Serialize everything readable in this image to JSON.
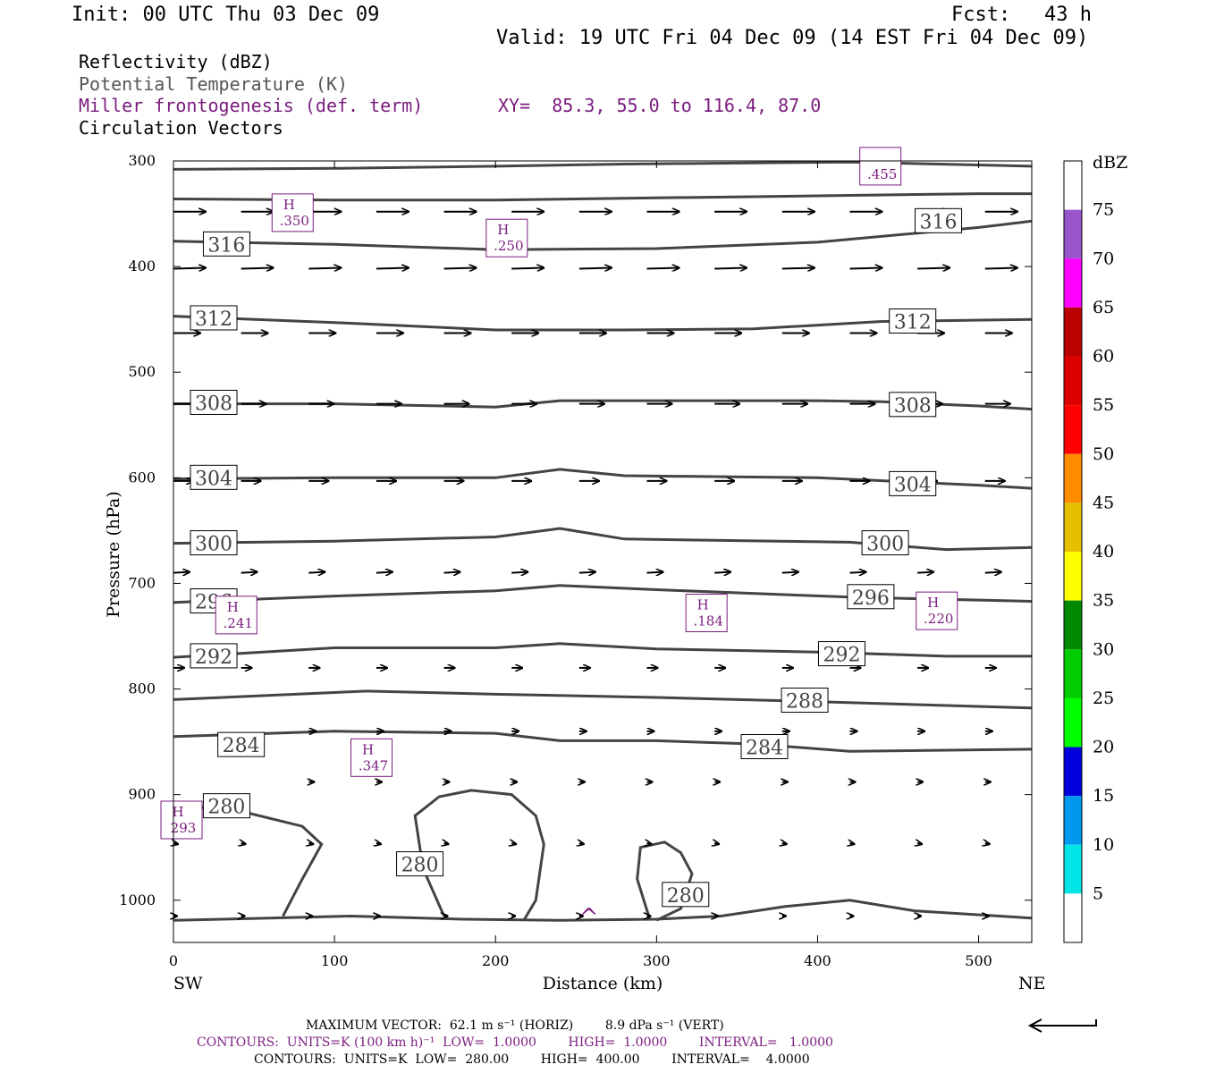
{
  "header": {
    "init": "Init: 00 UTC Thu 03 Dec 09",
    "fcst_label": "Fcst:",
    "fcst_value": "43 h",
    "valid": "Valid: 19 UTC Fri 04 Dec 09 (14 EST Fri 04 Dec 09)"
  },
  "legend": {
    "line1": "Reflectivity (dBZ)",
    "line2": "Potential Temperature (K)",
    "line3": "Miller frontogenesis (def. term)",
    "xy": "XY=  85.3, 55.0 to 116.4, 87.0",
    "line4": "Circulation Vectors"
  },
  "colors": {
    "theta": "#444444",
    "fronto": "#7a1c7e",
    "vector": "#000000",
    "frame": "#000000"
  },
  "chart_data": {
    "type": "contour-cross-section",
    "xlabel": "Distance (km)",
    "ylabel": "Pressure (hPa)",
    "x_ticks": [
      0,
      100,
      200,
      300,
      400,
      500
    ],
    "y_ticks": [
      300,
      400,
      500,
      600,
      700,
      800,
      900,
      1000
    ],
    "xlim": [
      0,
      533
    ],
    "ylim": [
      300,
      1040
    ],
    "x_end_labels": {
      "left": "SW",
      "right": "NE"
    },
    "colorbar": {
      "title": "dBZ",
      "levels": [
        5,
        10,
        15,
        20,
        25,
        30,
        35,
        40,
        45,
        50,
        55,
        60,
        65,
        70,
        75
      ],
      "colors": [
        "#ffffff",
        "#00e5e5",
        "#0099ee",
        "#0000dd",
        "#00ff00",
        "#00cc00",
        "#008800",
        "#ffff00",
        "#e5bf00",
        "#ff8c00",
        "#ff0000",
        "#dd0000",
        "#bb0000",
        "#ff00ff",
        "#9955cc",
        "#ffffff"
      ]
    },
    "theta_label_items": [
      {
        "v": 316,
        "x": 33,
        "p": 379
      },
      {
        "v": 316,
        "x": 475,
        "p": 357
      },
      {
        "v": 312,
        "x": 25,
        "p": 449
      },
      {
        "v": 312,
        "x": 459,
        "p": 452
      },
      {
        "v": 308,
        "x": 25,
        "p": 529
      },
      {
        "v": 308,
        "x": 459,
        "p": 531
      },
      {
        "v": 304,
        "x": 25,
        "p": 600
      },
      {
        "v": 304,
        "x": 459,
        "p": 606
      },
      {
        "v": 300,
        "x": 25,
        "p": 662
      },
      {
        "v": 300,
        "x": 442,
        "p": 662
      },
      {
        "v": 296,
        "x": 25,
        "p": 717
      },
      {
        "v": 296,
        "x": 433,
        "p": 713
      },
      {
        "v": 292,
        "x": 25,
        "p": 769
      },
      {
        "v": 292,
        "x": 415,
        "p": 767
      },
      {
        "v": 288,
        "x": 392,
        "p": 811
      },
      {
        "v": 284,
        "x": 42,
        "p": 853
      },
      {
        "v": 284,
        "x": 367,
        "p": 855
      },
      {
        "v": 280,
        "x": 33,
        "p": 911
      },
      {
        "v": 280,
        "x": 153,
        "p": 966
      },
      {
        "v": 280,
        "x": 318,
        "p": 995
      }
    ],
    "fronto_max_items": [
      {
        "m": "H",
        "v": ".350",
        "x": 74,
        "p": 349
      },
      {
        "m": "H",
        "v": ".250",
        "x": 207,
        "p": 373
      },
      {
        "m": "",
        "v": ".455",
        "x": 439,
        "p": 305
      },
      {
        "m": "H",
        "v": ".241",
        "x": 39,
        "p": 730
      },
      {
        "m": "H",
        "v": ".184",
        "x": 331,
        "p": 728
      },
      {
        "m": "H",
        "v": ".220",
        "x": 474,
        "p": 726
      },
      {
        "m": "H",
        "v": ".347",
        "x": 123,
        "p": 865
      },
      {
        "m": "H",
        "v": "293",
        "x": 5,
        "p": 924
      }
    ],
    "low_marker": {
      "text": "^",
      "x": 258,
      "p": 1010
    }
  },
  "footer": {
    "line1": "MAXIMUM VECTOR:  62.1 m s⁻¹ (HORIZ)        8.9 dPa s⁻¹ (VERT)",
    "line2": "CONTOURS:  UNITS=K (100 km h)⁻¹  LOW=  1.0000        HIGH=  1.0000        INTERVAL=   1.0000",
    "line3": "CONTOURS:  UNITS=K  LOW=  280.00        HIGH=  400.00        INTERVAL=    4.0000"
  }
}
